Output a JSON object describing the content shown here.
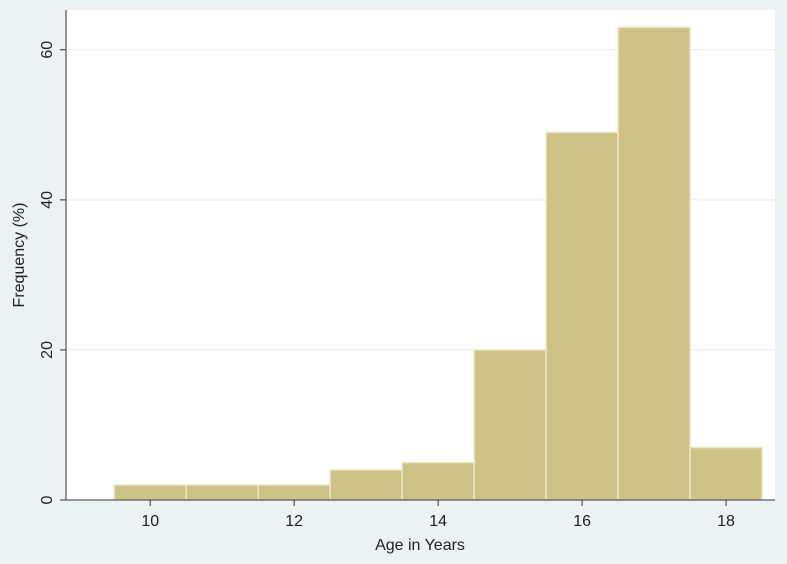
{
  "chart_data": {
    "type": "histogram",
    "xlabel": "Age in Years",
    "ylabel": "Frequency (%)",
    "bins": [
      9.5,
      10.5,
      11.5,
      12.5,
      13.5,
      14.5,
      15.5,
      16.5,
      17.5,
      18.5
    ],
    "values": [
      2,
      2,
      2,
      4,
      5,
      20,
      49,
      63,
      7
    ],
    "color": "#cdc387",
    "xlim": [
      8.83,
      18.68
    ],
    "ylim": [
      0,
      65.3
    ],
    "xticks": [
      10,
      12,
      14,
      16,
      18
    ],
    "yticks": [
      0,
      20,
      40,
      60
    ],
    "grid": true
  }
}
